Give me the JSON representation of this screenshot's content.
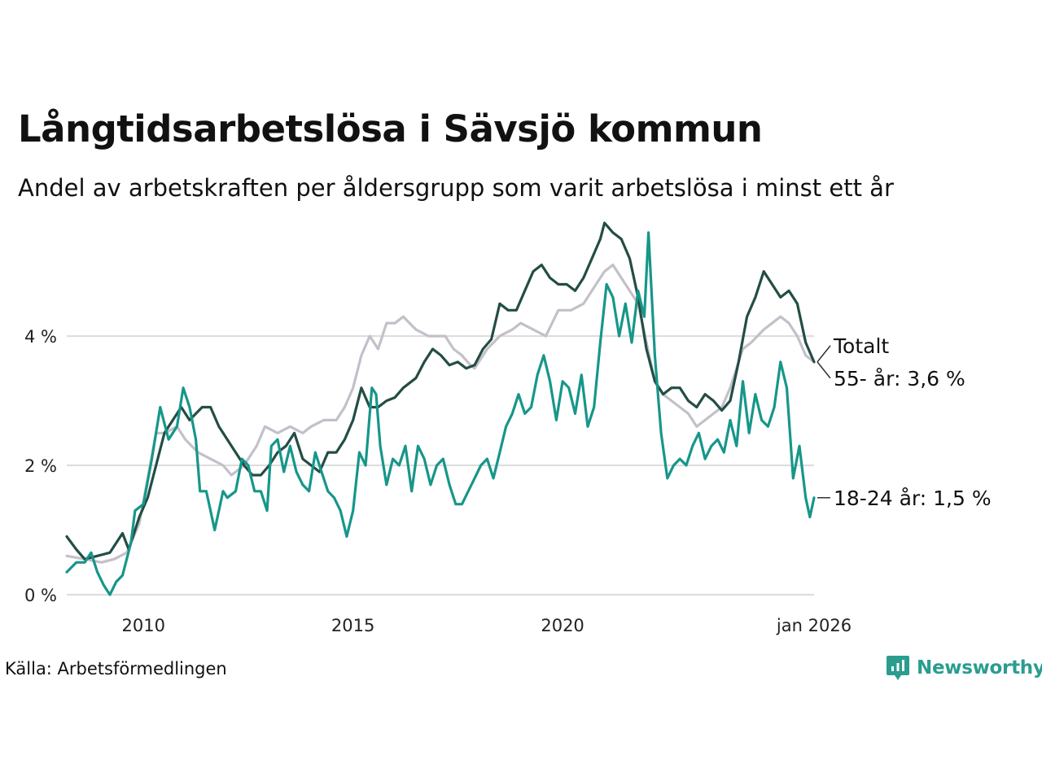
{
  "title": "Långtidsarbetslösa i Sävsjö kommun",
  "subtitle": "Andel av arbetskraften per åldersgrupp som varit arbetslösa i minst ett år",
  "source": "Källa: Arbetsförmedlingen",
  "brand": "Newsworthy",
  "colors": {
    "total": "#c4c0ca",
    "age55": "#234d45",
    "age18": "#17968a",
    "grid": "#dcdcdc",
    "brand": "#2a9d8f"
  },
  "chart_data": {
    "type": "line",
    "x_unit": "year",
    "xlim": [
      2008.17,
      2026.0
    ],
    "ylim": [
      0,
      5.8
    ],
    "x_ticks": [
      {
        "value": 2010,
        "label": "2010"
      },
      {
        "value": 2015,
        "label": "2015"
      },
      {
        "value": 2020,
        "label": "2020"
      },
      {
        "value": 2026,
        "label": "jan 2026"
      }
    ],
    "y_ticks": [
      {
        "value": 0,
        "label": "0 %"
      },
      {
        "value": 2,
        "label": "2 %"
      },
      {
        "value": 4,
        "label": "4 %"
      }
    ],
    "series": [
      {
        "name": "Totalt",
        "label": "Totalt",
        "color": "#c4c0ca",
        "points": [
          [
            2008.17,
            0.6
          ],
          [
            2008.6,
            0.55
          ],
          [
            2009.0,
            0.5
          ],
          [
            2009.3,
            0.55
          ],
          [
            2009.6,
            0.65
          ],
          [
            2009.9,
            1.1
          ],
          [
            2010.1,
            1.8
          ],
          [
            2010.3,
            2.5
          ],
          [
            2010.5,
            2.5
          ],
          [
            2010.8,
            2.6
          ],
          [
            2011.0,
            2.4
          ],
          [
            2011.3,
            2.2
          ],
          [
            2011.6,
            2.1
          ],
          [
            2011.9,
            2.0
          ],
          [
            2012.1,
            1.85
          ],
          [
            2012.4,
            2.0
          ],
          [
            2012.7,
            2.3
          ],
          [
            2012.9,
            2.6
          ],
          [
            2013.2,
            2.5
          ],
          [
            2013.5,
            2.6
          ],
          [
            2013.8,
            2.5
          ],
          [
            2014.0,
            2.6
          ],
          [
            2014.3,
            2.7
          ],
          [
            2014.6,
            2.7
          ],
          [
            2014.8,
            2.9
          ],
          [
            2015.0,
            3.2
          ],
          [
            2015.2,
            3.7
          ],
          [
            2015.4,
            4.0
          ],
          [
            2015.6,
            3.8
          ],
          [
            2015.8,
            4.2
          ],
          [
            2016.0,
            4.2
          ],
          [
            2016.2,
            4.3
          ],
          [
            2016.5,
            4.1
          ],
          [
            2016.8,
            4.0
          ],
          [
            2017.0,
            4.0
          ],
          [
            2017.2,
            4.0
          ],
          [
            2017.4,
            3.8
          ],
          [
            2017.6,
            3.7
          ],
          [
            2017.8,
            3.55
          ],
          [
            2017.9,
            3.5
          ],
          [
            2018.0,
            3.6
          ],
          [
            2018.2,
            3.8
          ],
          [
            2018.5,
            4.0
          ],
          [
            2018.8,
            4.1
          ],
          [
            2019.0,
            4.2
          ],
          [
            2019.3,
            4.1
          ],
          [
            2019.6,
            4.0
          ],
          [
            2019.9,
            4.4
          ],
          [
            2020.2,
            4.4
          ],
          [
            2020.5,
            4.5
          ],
          [
            2020.7,
            4.7
          ],
          [
            2020.9,
            4.9
          ],
          [
            2021.0,
            5.0
          ],
          [
            2021.2,
            5.1
          ],
          [
            2021.4,
            4.9
          ],
          [
            2021.6,
            4.7
          ],
          [
            2021.8,
            4.5
          ],
          [
            2022.0,
            3.9
          ],
          [
            2022.2,
            3.3
          ],
          [
            2022.4,
            3.1
          ],
          [
            2022.6,
            3.0
          ],
          [
            2022.8,
            2.9
          ],
          [
            2023.0,
            2.8
          ],
          [
            2023.2,
            2.6
          ],
          [
            2023.4,
            2.7
          ],
          [
            2023.6,
            2.8
          ],
          [
            2023.8,
            2.9
          ],
          [
            2024.0,
            3.2
          ],
          [
            2024.3,
            3.8
          ],
          [
            2024.5,
            3.9
          ],
          [
            2024.8,
            4.1
          ],
          [
            2025.0,
            4.2
          ],
          [
            2025.2,
            4.3
          ],
          [
            2025.4,
            4.2
          ],
          [
            2025.6,
            4.0
          ],
          [
            2025.8,
            3.7
          ],
          [
            2026.0,
            3.6
          ]
        ]
      },
      {
        "name": "55- år",
        "label": "55- år: 3,6 %",
        "color": "#234d45",
        "points": [
          [
            2008.17,
            0.9
          ],
          [
            2008.4,
            0.7
          ],
          [
            2008.6,
            0.55
          ],
          [
            2008.9,
            0.6
          ],
          [
            2009.2,
            0.65
          ],
          [
            2009.5,
            0.95
          ],
          [
            2009.65,
            0.7
          ],
          [
            2009.9,
            1.2
          ],
          [
            2010.1,
            1.5
          ],
          [
            2010.3,
            2.0
          ],
          [
            2010.5,
            2.5
          ],
          [
            2010.7,
            2.7
          ],
          [
            2010.9,
            2.9
          ],
          [
            2011.1,
            2.7
          ],
          [
            2011.4,
            2.9
          ],
          [
            2011.6,
            2.9
          ],
          [
            2011.8,
            2.6
          ],
          [
            2012.0,
            2.4
          ],
          [
            2012.2,
            2.2
          ],
          [
            2012.4,
            2.0
          ],
          [
            2012.6,
            1.85
          ],
          [
            2012.8,
            1.85
          ],
          [
            2013.0,
            2.0
          ],
          [
            2013.2,
            2.2
          ],
          [
            2013.4,
            2.3
          ],
          [
            2013.6,
            2.5
          ],
          [
            2013.8,
            2.1
          ],
          [
            2014.0,
            2.0
          ],
          [
            2014.2,
            1.9
          ],
          [
            2014.4,
            2.2
          ],
          [
            2014.6,
            2.2
          ],
          [
            2014.8,
            2.4
          ],
          [
            2015.0,
            2.7
          ],
          [
            2015.2,
            3.2
          ],
          [
            2015.4,
            2.9
          ],
          [
            2015.6,
            2.9
          ],
          [
            2015.8,
            3.0
          ],
          [
            2016.0,
            3.05
          ],
          [
            2016.2,
            3.2
          ],
          [
            2016.5,
            3.35
          ],
          [
            2016.7,
            3.6
          ],
          [
            2016.9,
            3.8
          ],
          [
            2017.1,
            3.7
          ],
          [
            2017.3,
            3.55
          ],
          [
            2017.5,
            3.6
          ],
          [
            2017.7,
            3.5
          ],
          [
            2017.9,
            3.55
          ],
          [
            2018.1,
            3.8
          ],
          [
            2018.3,
            3.95
          ],
          [
            2018.5,
            4.5
          ],
          [
            2018.7,
            4.4
          ],
          [
            2018.9,
            4.4
          ],
          [
            2019.1,
            4.7
          ],
          [
            2019.3,
            5.0
          ],
          [
            2019.5,
            5.1
          ],
          [
            2019.7,
            4.9
          ],
          [
            2019.9,
            4.8
          ],
          [
            2020.1,
            4.8
          ],
          [
            2020.3,
            4.7
          ],
          [
            2020.5,
            4.9
          ],
          [
            2020.7,
            5.2
          ],
          [
            2020.9,
            5.5
          ],
          [
            2021.0,
            5.75
          ],
          [
            2021.2,
            5.6
          ],
          [
            2021.4,
            5.5
          ],
          [
            2021.6,
            5.2
          ],
          [
            2021.8,
            4.6
          ],
          [
            2022.0,
            3.8
          ],
          [
            2022.2,
            3.3
          ],
          [
            2022.4,
            3.1
          ],
          [
            2022.6,
            3.2
          ],
          [
            2022.8,
            3.2
          ],
          [
            2023.0,
            3.0
          ],
          [
            2023.2,
            2.9
          ],
          [
            2023.4,
            3.1
          ],
          [
            2023.6,
            3.0
          ],
          [
            2023.8,
            2.85
          ],
          [
            2024.0,
            3.0
          ],
          [
            2024.2,
            3.6
          ],
          [
            2024.4,
            4.3
          ],
          [
            2024.6,
            4.6
          ],
          [
            2024.8,
            5.0
          ],
          [
            2025.0,
            4.8
          ],
          [
            2025.2,
            4.6
          ],
          [
            2025.4,
            4.7
          ],
          [
            2025.6,
            4.5
          ],
          [
            2025.8,
            3.9
          ],
          [
            2026.0,
            3.6
          ]
        ]
      },
      {
        "name": "18-24 år",
        "label": "18-24 år: 1,5 %",
        "color": "#17968a",
        "points": [
          [
            2008.17,
            0.35
          ],
          [
            2008.4,
            0.5
          ],
          [
            2008.6,
            0.5
          ],
          [
            2008.75,
            0.65
          ],
          [
            2008.9,
            0.35
          ],
          [
            2009.05,
            0.15
          ],
          [
            2009.2,
            0.0
          ],
          [
            2009.35,
            0.2
          ],
          [
            2009.5,
            0.3
          ],
          [
            2009.7,
            0.8
          ],
          [
            2009.8,
            1.3
          ],
          [
            2010.0,
            1.4
          ],
          [
            2010.2,
            2.1
          ],
          [
            2010.4,
            2.9
          ],
          [
            2010.6,
            2.4
          ],
          [
            2010.8,
            2.6
          ],
          [
            2010.95,
            3.2
          ],
          [
            2011.1,
            2.9
          ],
          [
            2011.25,
            2.4
          ],
          [
            2011.35,
            1.6
          ],
          [
            2011.5,
            1.6
          ],
          [
            2011.6,
            1.3
          ],
          [
            2011.7,
            1.0
          ],
          [
            2011.8,
            1.3
          ],
          [
            2011.9,
            1.6
          ],
          [
            2012.0,
            1.5
          ],
          [
            2012.2,
            1.6
          ],
          [
            2012.35,
            2.1
          ],
          [
            2012.5,
            2.0
          ],
          [
            2012.65,
            1.6
          ],
          [
            2012.8,
            1.6
          ],
          [
            2012.95,
            1.3
          ],
          [
            2013.05,
            2.3
          ],
          [
            2013.2,
            2.4
          ],
          [
            2013.35,
            1.9
          ],
          [
            2013.5,
            2.3
          ],
          [
            2013.65,
            1.9
          ],
          [
            2013.8,
            1.7
          ],
          [
            2013.95,
            1.6
          ],
          [
            2014.1,
            2.2
          ],
          [
            2014.25,
            1.9
          ],
          [
            2014.4,
            1.6
          ],
          [
            2014.55,
            1.5
          ],
          [
            2014.7,
            1.3
          ],
          [
            2014.85,
            0.9
          ],
          [
            2015.0,
            1.3
          ],
          [
            2015.15,
            2.2
          ],
          [
            2015.3,
            2.0
          ],
          [
            2015.45,
            3.2
          ],
          [
            2015.55,
            3.1
          ],
          [
            2015.65,
            2.3
          ],
          [
            2015.8,
            1.7
          ],
          [
            2015.95,
            2.1
          ],
          [
            2016.1,
            2.0
          ],
          [
            2016.25,
            2.3
          ],
          [
            2016.4,
            1.6
          ],
          [
            2016.55,
            2.3
          ],
          [
            2016.7,
            2.1
          ],
          [
            2016.85,
            1.7
          ],
          [
            2017.0,
            2.0
          ],
          [
            2017.15,
            2.1
          ],
          [
            2017.3,
            1.7
          ],
          [
            2017.45,
            1.4
          ],
          [
            2017.6,
            1.4
          ],
          [
            2017.75,
            1.6
          ],
          [
            2017.9,
            1.8
          ],
          [
            2018.05,
            2.0
          ],
          [
            2018.2,
            2.1
          ],
          [
            2018.35,
            1.8
          ],
          [
            2018.5,
            2.2
          ],
          [
            2018.65,
            2.6
          ],
          [
            2018.8,
            2.8
          ],
          [
            2018.95,
            3.1
          ],
          [
            2019.1,
            2.8
          ],
          [
            2019.25,
            2.9
          ],
          [
            2019.4,
            3.4
          ],
          [
            2019.55,
            3.7
          ],
          [
            2019.7,
            3.3
          ],
          [
            2019.85,
            2.7
          ],
          [
            2020.0,
            3.3
          ],
          [
            2020.15,
            3.2
          ],
          [
            2020.3,
            2.8
          ],
          [
            2020.45,
            3.4
          ],
          [
            2020.6,
            2.6
          ],
          [
            2020.75,
            2.9
          ],
          [
            2020.9,
            3.9
          ],
          [
            2021.05,
            4.8
          ],
          [
            2021.2,
            4.6
          ],
          [
            2021.35,
            4.0
          ],
          [
            2021.5,
            4.5
          ],
          [
            2021.65,
            3.9
          ],
          [
            2021.8,
            4.7
          ],
          [
            2021.95,
            4.3
          ],
          [
            2022.05,
            5.6
          ],
          [
            2022.2,
            3.7
          ],
          [
            2022.35,
            2.5
          ],
          [
            2022.5,
            1.8
          ],
          [
            2022.65,
            2.0
          ],
          [
            2022.8,
            2.1
          ],
          [
            2022.95,
            2.0
          ],
          [
            2023.1,
            2.3
          ],
          [
            2023.25,
            2.5
          ],
          [
            2023.4,
            2.1
          ],
          [
            2023.55,
            2.3
          ],
          [
            2023.7,
            2.4
          ],
          [
            2023.85,
            2.2
          ],
          [
            2024.0,
            2.7
          ],
          [
            2024.15,
            2.3
          ],
          [
            2024.3,
            3.3
          ],
          [
            2024.45,
            2.5
          ],
          [
            2024.6,
            3.1
          ],
          [
            2024.75,
            2.7
          ],
          [
            2024.9,
            2.6
          ],
          [
            2025.05,
            2.9
          ],
          [
            2025.2,
            3.6
          ],
          [
            2025.35,
            3.2
          ],
          [
            2025.5,
            1.8
          ],
          [
            2025.65,
            2.3
          ],
          [
            2025.8,
            1.5
          ],
          [
            2025.9,
            1.2
          ],
          [
            2026.0,
            1.5
          ]
        ]
      }
    ]
  }
}
